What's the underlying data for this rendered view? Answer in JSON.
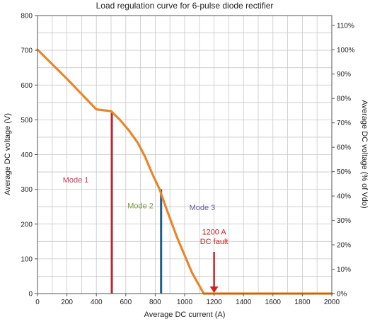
{
  "chart_data": {
    "type": "line",
    "title": "Load regulation curve for 6-pulse diode rectifier",
    "xlabel": "Average DC current (A)",
    "ylabel": "Average DC voltage (V)",
    "ylabel_right": "Average DC voltage (% of Vdo)",
    "xlim": [
      0,
      2000
    ],
    "ylim": [
      0,
      800
    ],
    "ylim_right": [
      0,
      114
    ],
    "grid": true,
    "x_ticks": [
      0,
      200,
      400,
      600,
      800,
      1000,
      1200,
      1400,
      1600,
      1800,
      2000
    ],
    "y_ticks": [
      0,
      100,
      200,
      300,
      400,
      500,
      600,
      700,
      800
    ],
    "y_right_ticks": [
      "0%",
      "10%",
      "20%",
      "30%",
      "40%",
      "50%",
      "60%",
      "70%",
      "80%",
      "90%",
      "100%",
      "110%"
    ],
    "series": [
      {
        "color": "#e8862a",
        "x": [
          0,
          100,
          200,
          300,
          400,
          500,
          560,
          620,
          680,
          730,
          780,
          830,
          880,
          950,
          1050,
          1130,
          1200,
          1400,
          1600,
          1800,
          2000
        ],
        "y": [
          702,
          660,
          618,
          574,
          530,
          525,
          500,
          470,
          435,
          395,
          345,
          300,
          240,
          160,
          60,
          0,
          0,
          0,
          0,
          0,
          0
        ]
      }
    ],
    "vertical_lines": [
      {
        "x": 505,
        "y": 525,
        "color": "#b22a35"
      },
      {
        "x": 840,
        "y": 300,
        "color": "#1f5c8a"
      }
    ],
    "annotations": [
      {
        "text": "Mode 1",
        "x": 260,
        "y": 320,
        "color": "#c8405c"
      },
      {
        "text": "Mode 2",
        "x": 700,
        "y": 245,
        "color": "#7a9a3a"
      },
      {
        "text": "Mode 3",
        "x": 1120,
        "y": 240,
        "color": "#6a5a9a"
      },
      {
        "text": "1200 A",
        "x": 1200,
        "y": 170,
        "color": "#cc2027"
      },
      {
        "text": "DC fault",
        "x": 1200,
        "y": 143,
        "color": "#cc2027"
      }
    ],
    "fault_arrow": {
      "x": 1200,
      "y_from": 120,
      "y_to": 0,
      "color": "#cc2027"
    }
  }
}
